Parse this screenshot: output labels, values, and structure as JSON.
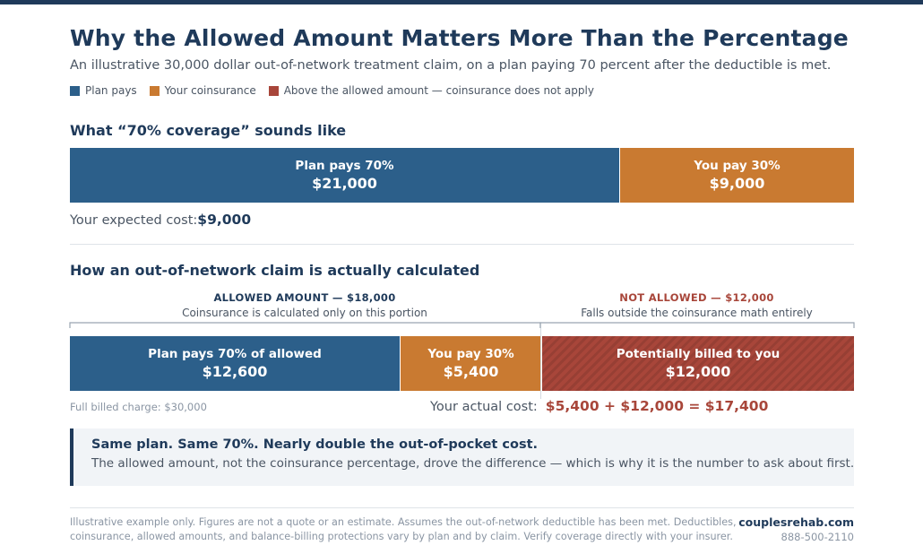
{
  "header": {
    "title": "Why the Allowed Amount Matters More Than the Percentage",
    "subtitle": "An illustrative 30,000 dollar out-of-network treatment claim, on a plan paying 70 percent after the deductible is met."
  },
  "legend": [
    {
      "label": "Plan pays",
      "color": "#2c5f8a"
    },
    {
      "label": "Your coinsurance",
      "color": "#c97a31"
    },
    {
      "label": "Above the allowed amount — coinsurance does not apply",
      "color": "#a8463a"
    }
  ],
  "colors": {
    "plan": "#2c5f8a",
    "coinsurance": "#c97a31",
    "above": "#a8463a",
    "accent": "#1f3a5a"
  },
  "chart_data": [
    {
      "type": "bar",
      "orientation": "horizontal-stacked",
      "title": "What “70% coverage” sounds like",
      "total": 30000,
      "segments": [
        {
          "label": "Plan pays 70%",
          "value_label": "$21,000",
          "value": 21000,
          "color_key": "plan"
        },
        {
          "label": "You pay 30%",
          "value_label": "$9,000",
          "value": 9000,
          "color_key": "coinsurance"
        }
      ],
      "result_label": "Your expected cost:",
      "result_value": "$9,000"
    },
    {
      "type": "bar",
      "orientation": "horizontal-stacked",
      "title": "How an out-of-network claim is actually calculated",
      "total": 30000,
      "segments": [
        {
          "label": "Plan pays 70% of allowed",
          "value_label": "$12,600",
          "value": 12600,
          "color_key": "plan"
        },
        {
          "label": "You pay 30%",
          "value_label": "$5,400",
          "value": 5400,
          "color_key": "coinsurance"
        },
        {
          "label": "Potentially billed to you",
          "value_label": "$12,000",
          "value": 12000,
          "color_key": "above",
          "hatched": true
        }
      ],
      "brackets": [
        {
          "heading": "ALLOWED AMOUNT — $18,000",
          "sub": "Coinsurance is calculated only on this portion",
          "value": 18000
        },
        {
          "heading": "NOT ALLOWED — $12,000",
          "sub": "Falls outside the coinsurance math entirely",
          "value": 12000
        }
      ],
      "full_charge_label": "Full billed charge: $30,000",
      "result_label": "Your actual cost:",
      "result_value": "$5,400 + $12,000 = $17,400"
    }
  ],
  "callout": {
    "heading": "Same plan. Same 70%. Nearly double the out-of-pocket cost.",
    "body": "The allowed amount, not the coinsurance percentage, drove the difference — which is why it is the number to ask about first."
  },
  "footer": {
    "note": "Illustrative example only. Figures are not a quote or an estimate. Assumes the out-of-network deductible has been met. Deductibles, coinsurance, allowed amounts, and balance-billing protections vary by plan and by claim. Verify coverage directly with your insurer.",
    "site": "couplesrehab.com",
    "phone": "888-500-2110"
  }
}
